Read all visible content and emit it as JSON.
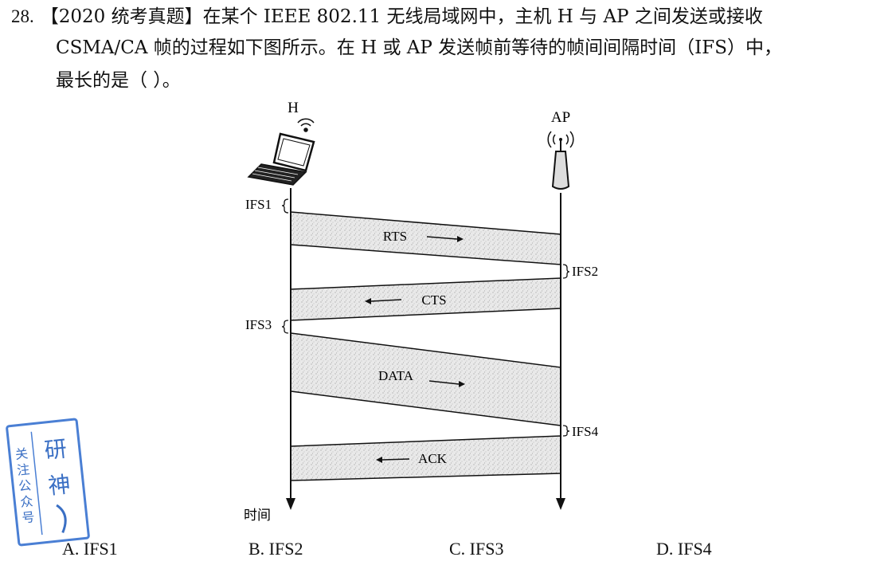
{
  "question": {
    "number": "28.",
    "line1": "【2020 统考真题】在某个 IEEE 802.11 无线局域网中，主机 H 与 AP 之间发送或接收",
    "line2": "CSMA/CA 帧的过程如下图所示。在 H 或 AP 发送帧前等待的帧间间隔时间（IFS）中，",
    "line3": "最长的是（   ）。"
  },
  "diagram": {
    "host_label": "H",
    "ap_label": "AP",
    "time_label": "时间",
    "ifs_labels": [
      "IFS1",
      "IFS2",
      "IFS3",
      "IFS4"
    ],
    "frames": [
      "RTS",
      "CTS",
      "DATA",
      "ACK"
    ]
  },
  "options": [
    "A.  IFS1",
    "B.  IFS2",
    "C.  IFS3",
    "D.  IFS4"
  ],
  "stamp": {
    "left_text": "关注公众号",
    "right_text": "研神"
  }
}
